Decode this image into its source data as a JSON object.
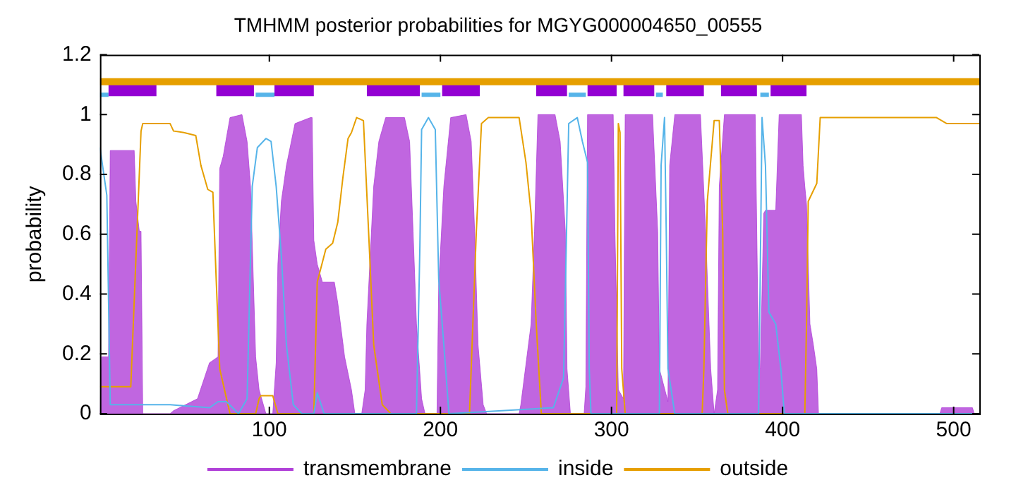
{
  "chart_data": {
    "type": "line",
    "title": "TMHMM posterior probabilities for MGYG000004650_00555",
    "ylabel": "probability",
    "xlim": [
      1,
      515
    ],
    "xticks": [
      100,
      200,
      300,
      400,
      500
    ],
    "ylim": [
      0,
      1.2
    ],
    "yticks": [
      0,
      0.2,
      0.4,
      0.6,
      0.8,
      1,
      1.2
    ],
    "grid": false,
    "legend": "bottom",
    "marker": "none",
    "series": [
      {
        "name": "transmembrane",
        "type": "area",
        "color": "#b040d8",
        "x": [
          1,
          2,
          5,
          6,
          7,
          21,
          22,
          24,
          25,
          26,
          42,
          44,
          58,
          65,
          70,
          71,
          73,
          77,
          84,
          87,
          89,
          92,
          94,
          98,
          102,
          104,
          105,
          107,
          110,
          115,
          124,
          125,
          126,
          128,
          131,
          138,
          140,
          142,
          144,
          148,
          150,
          154,
          156,
          157,
          161,
          164,
          168,
          179,
          182,
          184,
          186,
          189,
          191,
          198,
          199,
          202,
          206,
          215,
          218,
          220,
          222,
          225,
          227,
          246,
          247,
          253,
          255,
          257,
          267,
          270,
          273,
          274,
          276,
          284,
          285,
          286,
          301,
          302,
          304,
          307,
          308,
          324,
          327,
          328,
          333,
          334,
          337,
          352,
          355,
          358,
          360,
          362,
          363,
          366,
          384,
          386,
          387,
          389,
          390,
          396,
          398,
          411,
          412,
          413,
          414,
          416,
          418,
          420,
          421,
          492,
          493,
          511,
          512,
          515
        ],
        "values": [
          0,
          0.19,
          0.19,
          0.19,
          0.88,
          0.88,
          0.71,
          0.61,
          0.61,
          0,
          0,
          0.01,
          0.05,
          0.17,
          0.19,
          0.82,
          0.86,
          0.99,
          1,
          0.91,
          0.76,
          0.19,
          0.08,
          0,
          0,
          0.17,
          0.5,
          0.71,
          0.83,
          0.97,
          0.99,
          0.99,
          0.58,
          0.5,
          0.44,
          0.44,
          0.37,
          0.28,
          0.19,
          0.08,
          0,
          0,
          0.08,
          0.3,
          0.76,
          0.91,
          0.99,
          0.99,
          0.91,
          0.61,
          0.3,
          0.05,
          0,
          0,
          0.43,
          0.76,
          0.99,
          1,
          0.91,
          0.61,
          0.23,
          0.03,
          0,
          0,
          0.03,
          0.3,
          0.61,
          1,
          1,
          0.91,
          0.61,
          0.15,
          0,
          0,
          0.09,
          1,
          1,
          0.61,
          0.08,
          0.05,
          1,
          1,
          0.61,
          0.15,
          0.04,
          0.83,
          1,
          1,
          0.61,
          0.15,
          0,
          0.08,
          0.76,
          1,
          1,
          0.15,
          0.15,
          0.67,
          0.68,
          0.68,
          1,
          1,
          0.83,
          0.76,
          0.7,
          0.3,
          0.23,
          0.15,
          0,
          0,
          0.02,
          0.02,
          0,
          0
        ]
      },
      {
        "name": "inside",
        "color": "#56b4e9",
        "x": [
          1,
          5,
          7,
          42,
          65,
          70,
          75,
          82,
          87,
          90,
          93,
          98,
          101,
          104,
          107,
          110,
          114,
          119,
          126,
          128,
          132,
          186,
          188,
          189,
          193,
          197,
          199,
          202,
          205,
          266,
          272,
          275,
          280,
          283,
          286,
          287,
          288,
          328,
          329,
          331,
          332,
          333,
          337,
          386,
          388,
          390,
          392,
          396,
          399,
          401,
          515
        ],
        "values": [
          0.89,
          0.73,
          0.03,
          0.03,
          0.02,
          0.04,
          0.04,
          0,
          0.05,
          0.76,
          0.89,
          0.92,
          0.91,
          0.76,
          0.53,
          0.23,
          0.03,
          0,
          0,
          0.07,
          0,
          0,
          0.56,
          0.95,
          0.99,
          0.95,
          0.45,
          0.23,
          0,
          0.02,
          0.12,
          0.97,
          0.99,
          0.91,
          0.84,
          0.15,
          0,
          0,
          0.83,
          0.99,
          0.61,
          0.15,
          0,
          0,
          0.99,
          0.83,
          0.34,
          0.3,
          0.15,
          0,
          0
        ]
      },
      {
        "name": "outside",
        "color": "#e69f00",
        "x": [
          1,
          19,
          25,
          26,
          42,
          44,
          50,
          57,
          60,
          64,
          67,
          69,
          71,
          77,
          92,
          94,
          95,
          102,
          105,
          126,
          128,
          133,
          137,
          140,
          143,
          146,
          148,
          151,
          155,
          158,
          161,
          166,
          171,
          217,
          221,
          224,
          228,
          246,
          250,
          253,
          256,
          259,
          303,
          304,
          305,
          306,
          308,
          353,
          354,
          356,
          360,
          363,
          365,
          366,
          368,
          413,
          414,
          415,
          420,
          422,
          490,
          496,
          515
        ],
        "values": [
          0.09,
          0.09,
          0.945,
          0.97,
          0.97,
          0.945,
          0.94,
          0.93,
          0.83,
          0.75,
          0.74,
          0.44,
          0.15,
          0,
          0,
          0.05,
          0.06,
          0.06,
          0,
          0,
          0.44,
          0.55,
          0.57,
          0.64,
          0.79,
          0.92,
          0.94,
          0.99,
          0.98,
          0.61,
          0.23,
          0.03,
          0,
          0,
          0.61,
          0.97,
          0.99,
          0.99,
          0.84,
          0.67,
          0.3,
          0,
          0,
          0.97,
          0.94,
          0.15,
          0,
          0,
          0.15,
          0.71,
          0.98,
          0.98,
          0.61,
          0.08,
          0,
          0,
          0.3,
          0.71,
          0.77,
          0.99,
          0.99,
          0.97,
          0.97
        ]
      },
      {
        "type": "line",
        "color": "#e69f00",
        "x": [
          1,
          515
        ],
        "values": [
          1.11,
          1.11
        ]
      },
      {
        "type": "line",
        "color": "#9400d3",
        "x": [
          6,
          34,
          50,
          69,
          91,
          97,
          103,
          126,
          140,
          157,
          188,
          194,
          201,
          223,
          240,
          256,
          274,
          280,
          286,
          303,
          305,
          307,
          325,
          328,
          332,
          354,
          360,
          364,
          385,
          390,
          393,
          414
        ],
        "values": [
          1.085,
          1.085,
          null,
          1.085,
          1.085,
          null,
          1.085,
          1.085,
          null,
          1.085,
          1.085,
          null,
          1.085,
          1.085,
          null,
          1.085,
          1.085,
          null,
          1.085,
          1.085,
          null,
          1.085,
          1.085,
          null,
          1.085,
          1.085,
          null,
          1.085,
          1.085,
          null,
          1.085,
          1.085
        ]
      },
      {
        "type": "line",
        "color": "#56b4e9",
        "x": [
          1,
          6,
          50,
          92,
          103,
          150,
          189,
          200,
          240,
          275,
          285,
          290,
          326,
          330,
          360,
          387,
          392
        ],
        "values": [
          1.066,
          1.066,
          null,
          1.066,
          1.066,
          null,
          1.066,
          1.066,
          null,
          1.066,
          1.066,
          null,
          1.066,
          1.066,
          null,
          1.066,
          1.066
        ]
      }
    ]
  }
}
